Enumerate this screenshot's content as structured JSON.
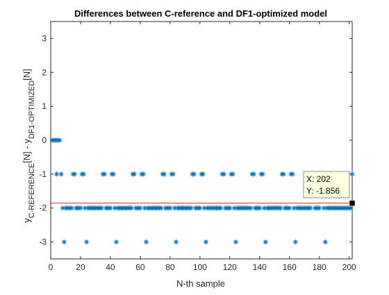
{
  "chart_data": {
    "type": "scatter",
    "title": "Differences between C-reference and DF1-optimized model",
    "xlabel": "N-th sample",
    "ylabel": {
      "base1": "y",
      "sub1": "C-REFERENCE",
      "mid": "[N] - y",
      "sub2": "DF1-OPTIMIZED",
      "end": "[N]"
    },
    "xlim": [
      0,
      202
    ],
    "ylim": [
      -3.5,
      3.5
    ],
    "xticks": [
      "0",
      "20",
      "40",
      "60",
      "80",
      "100",
      "120",
      "140",
      "160",
      "180",
      "200"
    ],
    "yticks": [
      "3",
      "2",
      "1",
      "0",
      "-1",
      "-2",
      "-3"
    ],
    "marker": "asterisk",
    "marker_color": "#0072BD",
    "series": [
      {
        "zero_points_x": [
          1,
          2,
          3,
          4,
          5,
          6
        ],
        "minus_one_points_x": [
          4,
          7,
          15,
          16,
          21,
          22,
          35,
          36,
          41,
          42,
          55,
          56,
          61,
          62,
          75,
          76,
          81,
          82,
          95,
          96,
          101,
          102,
          115,
          116,
          121,
          122,
          135,
          136,
          141,
          142,
          155,
          156,
          161,
          162,
          175,
          176,
          181,
          182,
          202
        ],
        "minus_three_points_x": [
          9,
          24,
          44,
          64,
          84,
          104,
          124,
          144,
          164,
          184
        ],
        "minus_two_range": [
          8,
          201
        ]
      }
    ],
    "mean_line": {
      "y": -1.856,
      "color": "#D62828"
    },
    "datatip": {
      "x_label": "X: 202",
      "y_label": "Y: -1.856",
      "x": 202,
      "y": -1.856
    },
    "grid": false,
    "legend": "none"
  }
}
